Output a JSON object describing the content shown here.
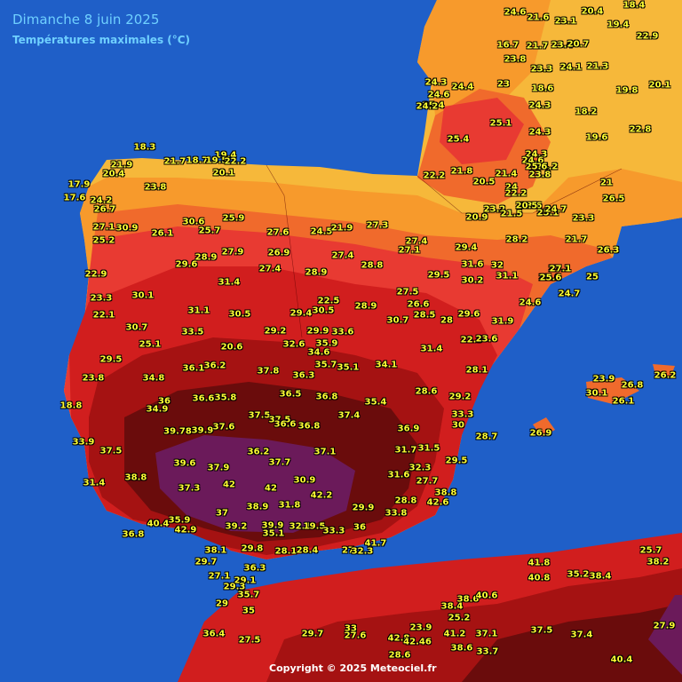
{
  "map": {
    "title": "Dimanche 8 juin 2025",
    "subtitle": "Températures maximales (°C)",
    "credit": "Copyright © 2025 Meteociel.fr",
    "colors": {
      "sea": "#1f5fc8",
      "t_under_21": "#f6b83a",
      "t_21_24": "#f79a2c",
      "t_24_27": "#f06a2c",
      "t_27_30": "#e83a32",
      "t_30_33": "#d11e1e",
      "t_33_36": "#a51212",
      "t_36_39": "#6a0c0c",
      "t_over_39": "#6b1a5a",
      "value_text": "#ffff33",
      "title_text": "#6fd0ff"
    },
    "stations": [
      "18.3",
      "21.7",
      "19.4",
      "18.7",
      "19.5",
      "22.2",
      "20.1",
      "21.9",
      "20.4",
      "17.9",
      "17.6",
      "23.8",
      "24.2",
      "26.7",
      "27.1",
      "30.9",
      "25.2",
      "26.1",
      "30.6",
      "25.9",
      "25.7",
      "27.6",
      "24.5",
      "21.9",
      "27.3",
      "27.4",
      "27.1",
      "29.4",
      "28.2",
      "22.9",
      "29.6",
      "28.9",
      "27.9",
      "26.9",
      "27.4",
      "28.8",
      "31.6",
      "32",
      "31.1",
      "27.1",
      "23.3",
      "30.1",
      "31.4",
      "27.4",
      "28.9",
      "22.5",
      "27.5",
      "29.5",
      "30.2",
      "25.6",
      "25",
      "22.1",
      "31.1",
      "30.5",
      "29.4",
      "30.5",
      "28.9",
      "26.6",
      "30.7",
      "28",
      "29.6",
      "31.9",
      "24.6",
      "30.7",
      "33.5",
      "29.2",
      "29.9",
      "33.6",
      "28.5",
      "22.5",
      "23.6",
      "25.1",
      "20.6",
      "32.6",
      "35.9",
      "34.6",
      "31.4",
      "29.5",
      "36.1",
      "36.2",
      "37.8",
      "35.7",
      "35.1",
      "34.1",
      "28.1",
      "23.8",
      "34.8",
      "36.3",
      "18.8",
      "36",
      "36.5",
      "36.8",
      "28.6",
      "29.2",
      "36.6",
      "35.8",
      "35.4",
      "34.9",
      "37.5",
      "37.5",
      "37.4",
      "33.3",
      "39.78",
      "39.9",
      "37.6",
      "36.6",
      "36.8",
      "36.9",
      "30",
      "33.9",
      "28.7",
      "37.5",
      "36.2",
      "37.1",
      "31.7",
      "31.5",
      "39.6",
      "37.9",
      "37.7",
      "32.3",
      "29.5",
      "31.4",
      "38.8",
      "37.3",
      "42",
      "42",
      "30.9",
      "31.6",
      "27.7",
      "38.8",
      "42.2",
      "38.9",
      "31.8",
      "28.8",
      "42.6",
      "37",
      "29.9",
      "33.8",
      "36.8",
      "40.4",
      "35.9",
      "42.9",
      "39.2",
      "39.9",
      "32.1",
      "19.5",
      "33.3",
      "36",
      "35.1",
      "41.7",
      "38.1",
      "29.8",
      "28.1",
      "28.4",
      "27",
      "32.3",
      "29.7",
      "36.3",
      "27.1",
      "29.1",
      "29.3",
      "35.7",
      "29",
      "35",
      "36.4",
      "27.5",
      "29.7",
      "33",
      "27.6",
      "42.8",
      "42.46",
      "28.6",
      "23.9",
      "38.4",
      "25.2",
      "38.6",
      "40.6",
      "41.2",
      "37.1",
      "37.5",
      "37.4",
      "38.6",
      "33.7",
      "40.4",
      "27.9",
      "41.8",
      "40.8",
      "35.2",
      "38.4",
      "25.7",
      "38.2",
      "26.9",
      "26.2",
      "23.9",
      "26.8",
      "26.1",
      "30.1",
      "20.9",
      "25.1",
      "24.3",
      "24.6",
      "23.2",
      "21.5",
      "21.4",
      "24",
      "23.8",
      "24.2",
      "21",
      "26.5",
      "23.3",
      "21.7",
      "26.3",
      "27.1",
      "25.6",
      "24.7",
      "24.6",
      "21.6",
      "23.1",
      "20.4",
      "18.4",
      "19.4",
      "22.9",
      "16.7",
      "21.7",
      "23.4",
      "20.7",
      "23.8",
      "23.3",
      "24.1",
      "21.3",
      "18.6",
      "23",
      "24.3",
      "25.1",
      "24.3",
      "24.6",
      "25.4",
      "24.2",
      "24.3",
      "24.4",
      "25.4",
      "22.2",
      "21.8",
      "20.5",
      "22.2",
      "23.6",
      "24.7",
      "25.6",
      "20.5",
      "19.6",
      "18.2",
      "19.8",
      "20.1",
      "22.8",
      "20.8",
      "20.3"
    ]
  }
}
